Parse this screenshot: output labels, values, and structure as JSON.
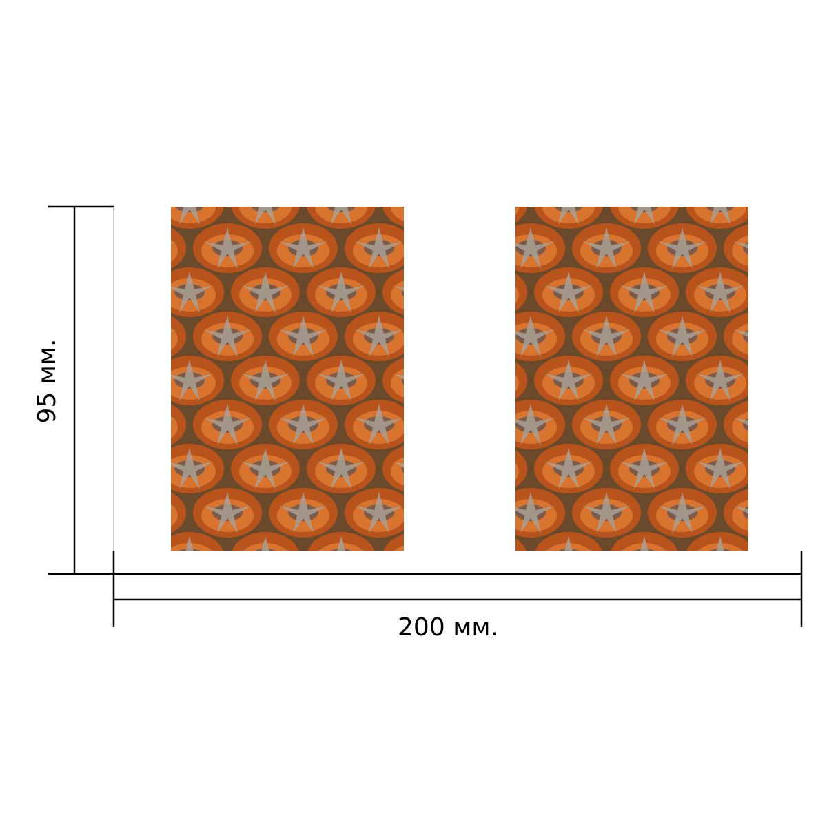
{
  "dimensions": {
    "height": {
      "label": "95 мм."
    },
    "width": {
      "label": "200 мм."
    }
  }
}
